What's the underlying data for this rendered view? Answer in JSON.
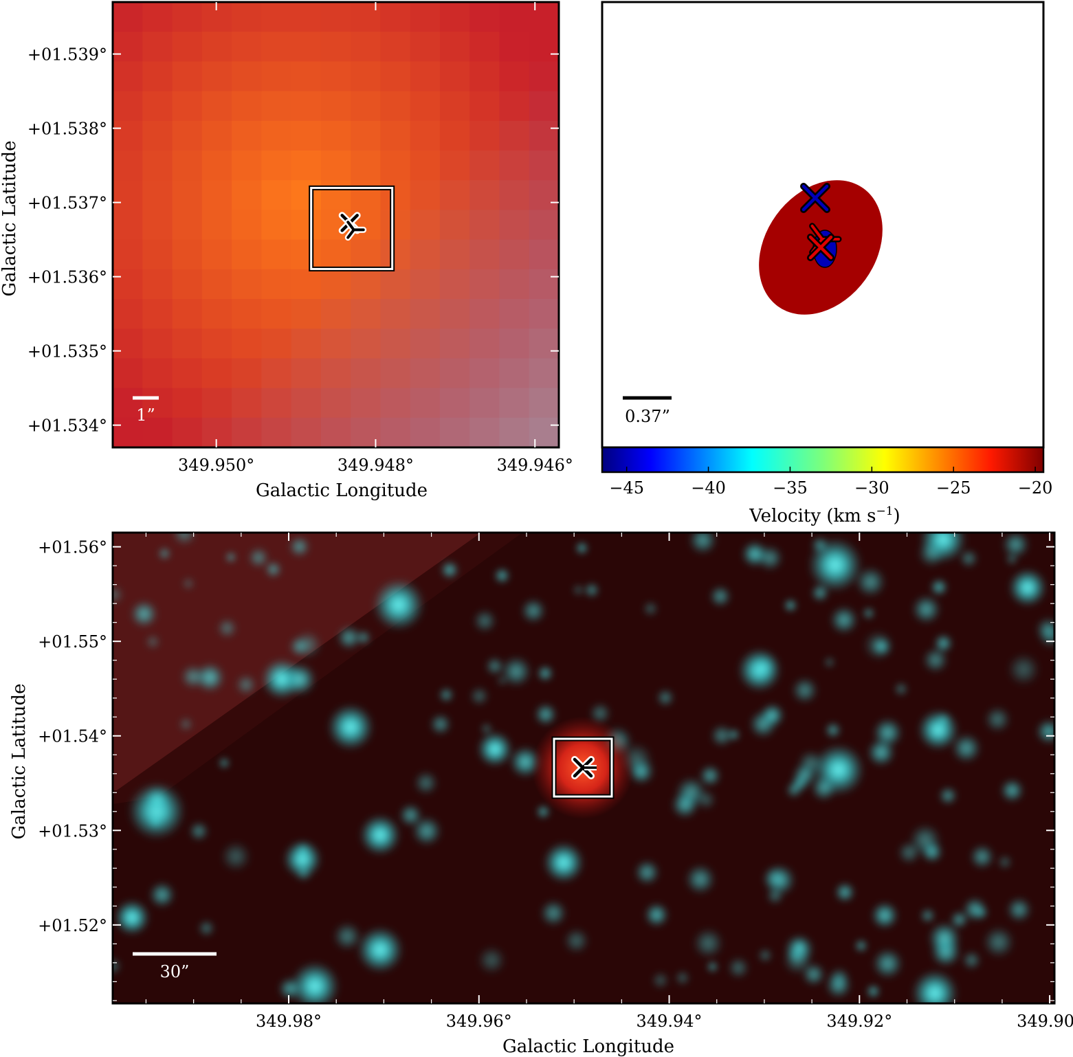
{
  "chart_data": [
    {
      "type": "heatmap",
      "panel": "top-left",
      "xlabel": "Galactic Longitude",
      "ylabel": "Galactic Latitude",
      "xlim": [
        349.9513,
        349.9457
      ],
      "ylim": [
        1.5337,
        1.5397
      ],
      "x_ticks": [
        349.95,
        349.948,
        349.946
      ],
      "x_tick_labels": [
        "349.950°",
        "349.948°",
        "349.946°"
      ],
      "y_ticks": [
        1.534,
        1.535,
        1.536,
        1.537,
        1.538,
        1.539
      ],
      "y_tick_labels": [
        "+01.534°",
        "+01.535°",
        "+01.536°",
        "+01.537°",
        "+01.538°",
        "+01.539°"
      ],
      "scale_bar_label": "1”",
      "colors": {
        "warm": "#ff7a1a",
        "edge": "#c8202a",
        "cool": "#a88090"
      },
      "markers": [
        {
          "symbol": "x",
          "x": 349.9483,
          "y": 1.53665
        },
        {
          "symbol": "tri",
          "x": 349.9483,
          "y": 1.53665
        }
      ]
    },
    {
      "type": "scatter",
      "panel": "top-right",
      "scale_bar_label": "0.37”",
      "colorbar": {
        "label_main": "Velocity (km s",
        "label_exp": "−1",
        "label_end": ")",
        "range": [
          -46.5,
          -19.5
        ],
        "ticks": [
          -45,
          -40,
          -35,
          -30,
          -25,
          -20
        ],
        "tick_labels": [
          "−45",
          "−40",
          "−35",
          "−30",
          "−25",
          "−20"
        ],
        "colormap": "jet"
      },
      "points": [
        {
          "symbol": "ellipse",
          "velocity": -20.5
        },
        {
          "symbol": "x",
          "velocity": -45
        },
        {
          "symbol": "x",
          "velocity": -22
        },
        {
          "symbol": "tri",
          "velocity": -22
        },
        {
          "symbol": "dot",
          "velocity": -45
        }
      ]
    },
    {
      "type": "heatmap",
      "panel": "bottom",
      "xlabel": "Galactic Longitude",
      "ylabel": "Galactic Latitude",
      "xlim": [
        349.9985,
        349.8995
      ],
      "ylim": [
        1.5117,
        1.5615
      ],
      "x_ticks": [
        349.98,
        349.96,
        349.94,
        349.92,
        349.9
      ],
      "x_tick_labels": [
        "349.98°",
        "349.96°",
        "349.94°",
        "349.92°",
        "349.90°"
      ],
      "y_ticks": [
        1.52,
        1.53,
        1.54,
        1.55,
        1.56
      ],
      "y_tick_labels": [
        "+01.52°",
        "+01.53°",
        "+01.54°",
        "+01.55°",
        "+01.56°"
      ],
      "scale_bar_label": "30”",
      "colors": {
        "background": "#2a0606",
        "stars": "#33d6dc",
        "source": "#e0301a"
      },
      "markers": [
        {
          "symbol": "x",
          "x": 349.9483,
          "y": 1.53665
        }
      ]
    }
  ]
}
